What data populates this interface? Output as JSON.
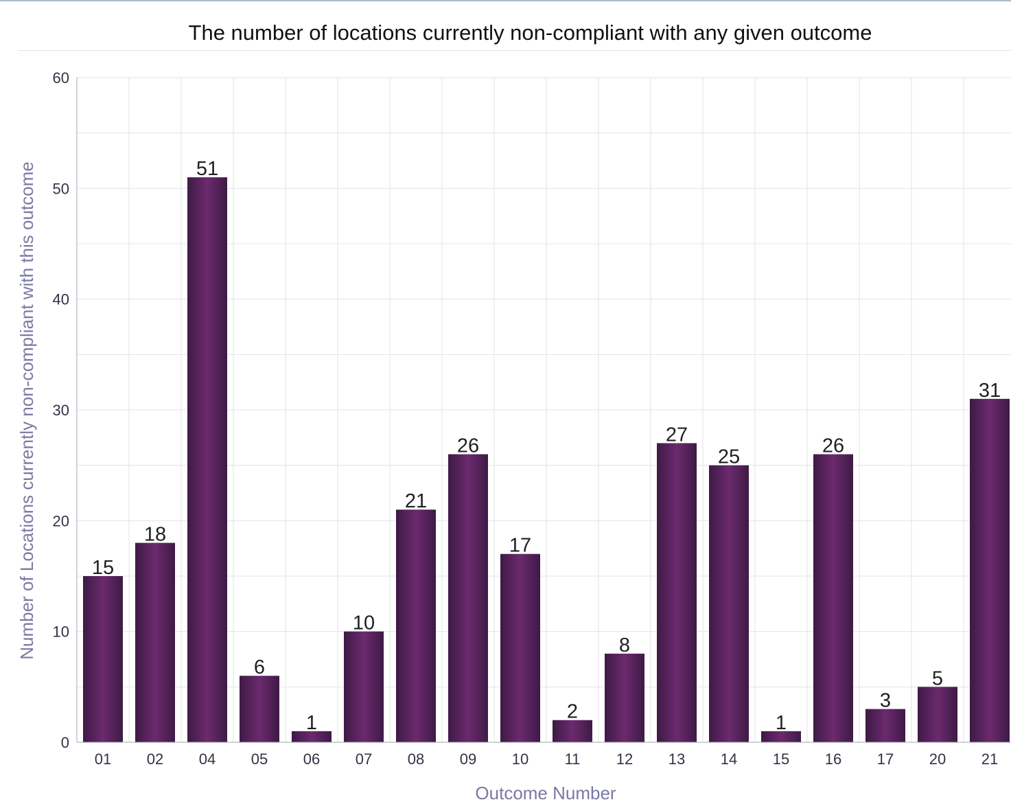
{
  "chart_data": {
    "type": "bar",
    "title": "The number of locations currently non-compliant with any given outcome",
    "xlabel": "Outcome Number",
    "ylabel": "Number of Locations currently non-compliant with this outcome",
    "categories": [
      "01",
      "02",
      "04",
      "05",
      "06",
      "07",
      "08",
      "09",
      "10",
      "11",
      "12",
      "13",
      "14",
      "15",
      "16",
      "17",
      "20",
      "21"
    ],
    "values": [
      15,
      18,
      51,
      6,
      1,
      10,
      21,
      26,
      17,
      2,
      8,
      27,
      25,
      1,
      26,
      3,
      5,
      31
    ],
    "ylim": [
      0,
      60
    ],
    "yticks": [
      "0",
      "10",
      "20",
      "30",
      "40",
      "50",
      "60"
    ],
    "grid": true,
    "data_labels": true,
    "colors": {
      "bar": "#6b2a6e",
      "bar_dark": "#3e1a45",
      "grid": "#e3e3ea",
      "axis_title": "#7a79a3"
    }
  }
}
